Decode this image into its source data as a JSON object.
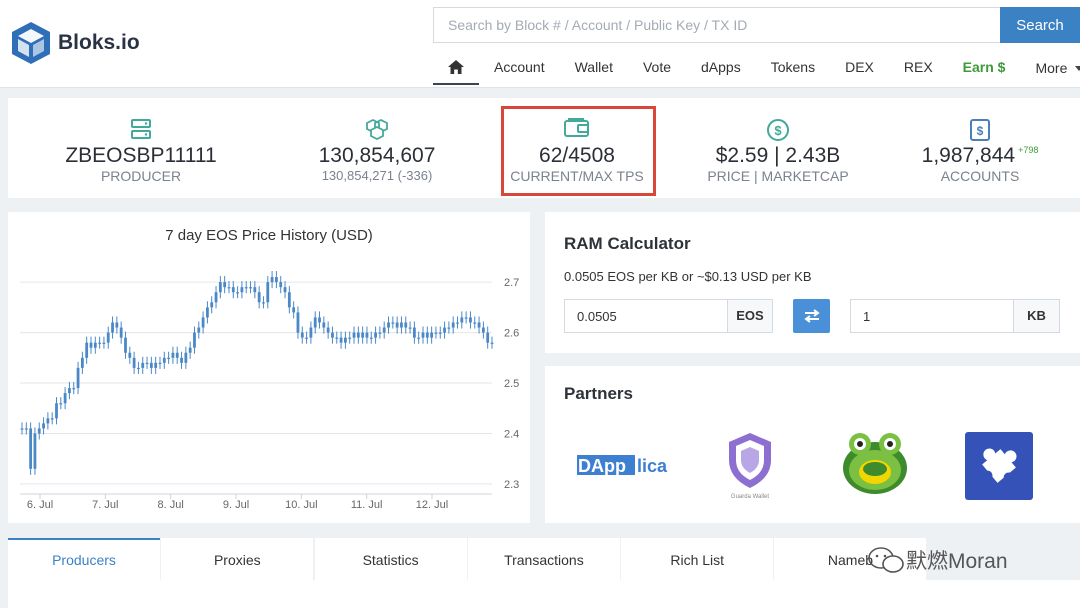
{
  "header": {
    "logo_text": "Bloks.io",
    "search_placeholder": "Search by Block # / Account / Public Key / TX ID",
    "search_button": "Search",
    "nav": [
      {
        "label": "Account"
      },
      {
        "label": "Wallet"
      },
      {
        "label": "Vote"
      },
      {
        "label": "dApps"
      },
      {
        "label": "Tokens"
      },
      {
        "label": "DEX"
      },
      {
        "label": "REX"
      },
      {
        "label": "Earn $"
      },
      {
        "label": "More"
      }
    ]
  },
  "stats": {
    "producer": {
      "value": "ZBEOSBP11111",
      "label": "PRODUCER"
    },
    "block": {
      "value": "130,854,607",
      "sub": "130,854,271 (-336)"
    },
    "tps": {
      "value": "62/4508",
      "label": "CURRENT/MAX TPS"
    },
    "price": {
      "value": "$2.59 | 2.43B",
      "label": "PRICE | MARKETCAP"
    },
    "accounts": {
      "value": "1,987,844",
      "delta": "+798",
      "label": "ACCOUNTS"
    }
  },
  "ram": {
    "title": "RAM Calculator",
    "rate": "0.0505 EOS per KB or ~$0.13 USD per KB",
    "eos_value": "0.0505",
    "eos_unit": "EOS",
    "kb_value": "1",
    "kb_unit": "KB"
  },
  "partners": {
    "title": "Partners",
    "items": [
      {
        "name": "DApplica",
        "text_a": "DApp",
        "text_b": "lica"
      },
      {
        "name": "Guarda Wallet",
        "caption": "Guarda Wallet"
      },
      {
        "name": "Frog"
      },
      {
        "name": "Puzzle"
      }
    ]
  },
  "tabs": [
    "Producers",
    "Proxies",
    "Statistics",
    "Transactions",
    "Rich List",
    "Nameb"
  ],
  "watermark": "默燃Moran",
  "colors": {
    "accent": "#3b82c4",
    "earn": "#3f9b3a",
    "highlight": "#d9463a",
    "chart_line": "#4a88c7"
  },
  "chart_data": {
    "type": "candlestick",
    "title": "7 day EOS Price History (USD)",
    "x_ticks": [
      "6. Jul",
      "7. Jul",
      "8. Jul",
      "9. Jul",
      "10. Jul",
      "11. Jul",
      "12. Jul"
    ],
    "y_ticks": [
      "2.3",
      "2.4",
      "2.5",
      "2.6",
      "2.7"
    ],
    "ylim": [
      2.28,
      2.73
    ],
    "grid": true,
    "series": [
      {
        "values": [
          2.41,
          2.41,
          2.33,
          2.4,
          2.41,
          2.42,
          2.43,
          2.43,
          2.46,
          2.46,
          2.48,
          2.49,
          2.49,
          2.53,
          2.55,
          2.58,
          2.57,
          2.58,
          2.58,
          2.58,
          2.6,
          2.62,
          2.61,
          2.59,
          2.56,
          2.55,
          2.53,
          2.53,
          2.54,
          2.54,
          2.53,
          2.54,
          2.54,
          2.55,
          2.55,
          2.56,
          2.55,
          2.54,
          2.56,
          2.57,
          2.6,
          2.61,
          2.63,
          2.65,
          2.66,
          2.68,
          2.7,
          2.69,
          2.69,
          2.68,
          2.68,
          2.69,
          2.69,
          2.69,
          2.68,
          2.66,
          2.66,
          2.7,
          2.71,
          2.7,
          2.69,
          2.68,
          2.65,
          2.64,
          2.6,
          2.59,
          2.59,
          2.61,
          2.63,
          2.62,
          2.61,
          2.6,
          2.59,
          2.59,
          2.58,
          2.59,
          2.59,
          2.6,
          2.59,
          2.6,
          2.59,
          2.59,
          2.6,
          2.6,
          2.61,
          2.62,
          2.62,
          2.61,
          2.62,
          2.61,
          2.61,
          2.59,
          2.59,
          2.6,
          2.59,
          2.6,
          2.6,
          2.6,
          2.61,
          2.61,
          2.62,
          2.62,
          2.63,
          2.63,
          2.62,
          2.62,
          2.61,
          2.6,
          2.58,
          2.58
        ]
      }
    ]
  }
}
